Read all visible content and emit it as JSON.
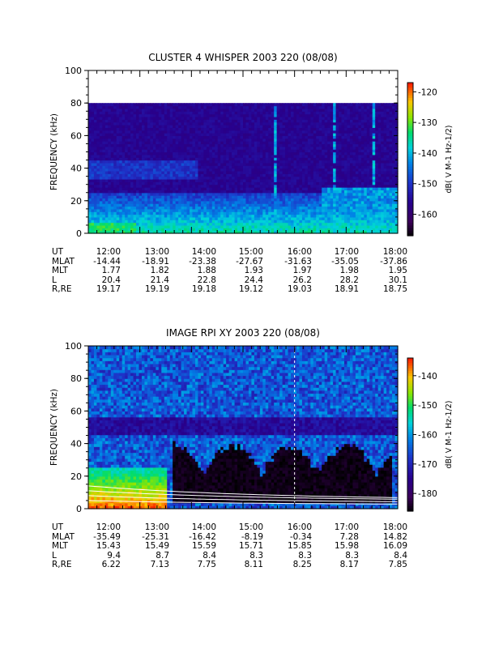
{
  "chart_data": [
    {
      "type": "heatmap",
      "title": "CLUSTER 4 WHISPER 2003 220 (08/08)",
      "ylabel": "FREQUENCY (kHz)",
      "ylim": [
        0,
        100
      ],
      "yticks": [
        "0",
        "20",
        "40",
        "60",
        "80",
        "100"
      ],
      "xlim": [
        "12:00",
        "18:00"
      ],
      "xticks": [
        "12:00",
        "13:00",
        "14:00",
        "15:00",
        "16:00",
        "17:00",
        "18:00"
      ],
      "data_ymax": 80,
      "colorbar": {
        "label": "dB( V M⁻¹ Hz⁻¹ᐟ²)",
        "label_plain": "dB( V M-1 Hz-1/2)",
        "range": [
          -167,
          -117
        ],
        "ticks": [
          "-120",
          "-130",
          "-140",
          "-150",
          "-160"
        ],
        "tick_values": [
          -120,
          -130,
          -140,
          -150,
          -160
        ],
        "colormap": "rainbow"
      },
      "ephemeris": {
        "labels": [
          "UT",
          "MLAT",
          "MLT",
          "L",
          "R,RE"
        ],
        "rows": [
          [
            "12:00",
            "13:00",
            "14:00",
            "15:00",
            "16:00",
            "17:00",
            "18:00"
          ],
          [
            "-14.44",
            "-18.91",
            "-23.38",
            "-27.67",
            "-31.63",
            "-35.05",
            "-37.86"
          ],
          [
            "1.77",
            "1.82",
            "1.88",
            "1.93",
            "1.97",
            "1.98",
            "1.95"
          ],
          [
            "20.4",
            "21.4",
            "22.8",
            "24.4",
            "26.2",
            "28.2",
            "30.1"
          ],
          [
            "19.17",
            "19.19",
            "19.18",
            "19.12",
            "19.03",
            "18.91",
            "18.75"
          ]
        ]
      }
    },
    {
      "type": "heatmap",
      "title": "IMAGE RPI XY 2003 220 (08/08)",
      "ylabel": "FREQUENCY (kHz)",
      "ylim": [
        0,
        100
      ],
      "yticks": [
        "0",
        "20",
        "40",
        "60",
        "80",
        "100"
      ],
      "xlim": [
        "12:00",
        "18:00"
      ],
      "xticks": [
        "12:00",
        "13:00",
        "14:00",
        "15:00",
        "16:00",
        "17:00",
        "18:00"
      ],
      "data_ymax": 100,
      "marker_time": "16:00",
      "colorbar": {
        "label_plain": "dB( V M-1 Hz-1/2)",
        "range": [
          -186,
          -134
        ],
        "ticks": [
          "-140",
          "-150",
          "-160",
          "-170",
          "-180"
        ],
        "tick_values": [
          -140,
          -150,
          -160,
          -170,
          -180
        ],
        "colormap": "rainbow"
      },
      "ephemeris": {
        "labels": [
          "UT",
          "MLAT",
          "MLT",
          "L",
          "R,RE"
        ],
        "rows": [
          [
            "12:00",
            "13:00",
            "14:00",
            "15:00",
            "16:00",
            "17:00",
            "18:00"
          ],
          [
            "-35.49",
            "-25.31",
            "-16.42",
            "-8.19",
            "-0.34",
            "7.28",
            "14.82"
          ],
          [
            "15.43",
            "15.49",
            "15.59",
            "15.71",
            "15.85",
            "15.98",
            "16.09"
          ],
          [
            "9.4",
            "8.7",
            "8.4",
            "8.3",
            "8.3",
            "8.3",
            "8.4"
          ],
          [
            "6.22",
            "7.13",
            "7.75",
            "8.11",
            "8.25",
            "8.17",
            "7.85"
          ]
        ]
      }
    }
  ]
}
